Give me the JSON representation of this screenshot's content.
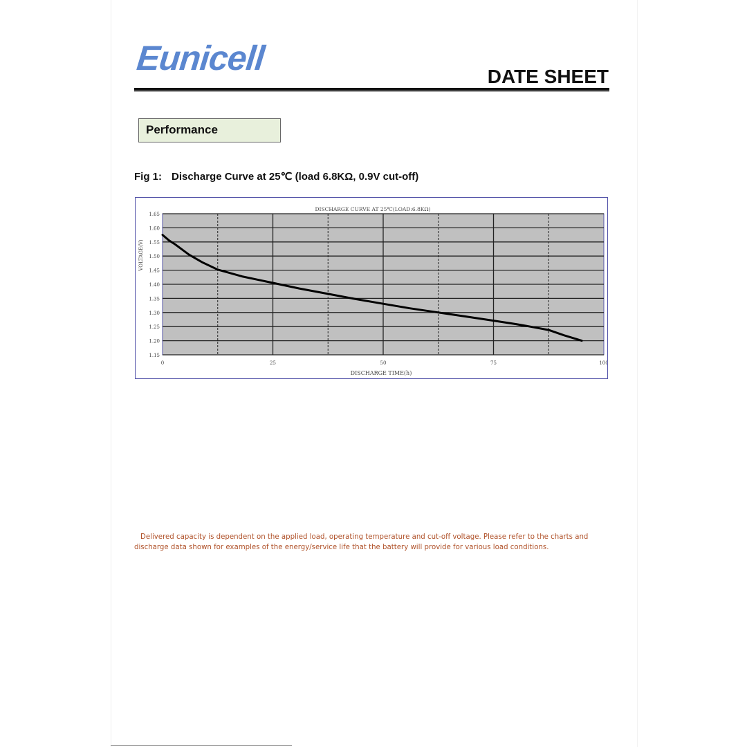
{
  "header": {
    "logo_text": "Eunicell",
    "title": "DATE SHEET"
  },
  "section": {
    "label": "Performance"
  },
  "figure": {
    "number": "Fig 1:",
    "caption": "Discharge Curve at 25℃ (load 6.8KΩ, 0.9V cut-off)"
  },
  "chart_data": {
    "type": "line",
    "title": "DISCHARGE CURVE AT 25℃(LOAD:6.8KΩ)",
    "xlabel": "DISCHARGE TIME(h)",
    "ylabel": "VOLTAGE(V)",
    "xlim": [
      0,
      100
    ],
    "ylim": [
      1.15,
      1.65
    ],
    "x_ticks": [
      "0",
      "25",
      "50",
      "75",
      "100"
    ],
    "y_ticks": [
      "1.65",
      "1.60",
      "1.55",
      "1.50",
      "1.45",
      "1.40",
      "1.35",
      "1.30",
      "1.25",
      "1.20",
      "1.15"
    ],
    "grid": true,
    "plot_background": "#c0c0c0",
    "series": [
      {
        "x": [
          0,
          1.5,
          3,
          6,
          9,
          12.5,
          18,
          25,
          31,
          37.5,
          44,
          50,
          56,
          62.5,
          69,
          75,
          80,
          83,
          87.5,
          91,
          95
        ],
        "y": [
          1.575,
          1.555,
          1.54,
          1.505,
          1.478,
          1.452,
          1.428,
          1.405,
          1.385,
          1.366,
          1.347,
          1.331,
          1.315,
          1.3,
          1.285,
          1.271,
          1.259,
          1.251,
          1.238,
          1.219,
          1.2
        ],
        "color": "#000000"
      }
    ]
  },
  "note": "Delivered capacity is dependent on the applied load, operating temperature and cut-off voltage. Please refer to the charts and discharge data shown for examples of the energy/service life that the battery will provide for various load conditions."
}
